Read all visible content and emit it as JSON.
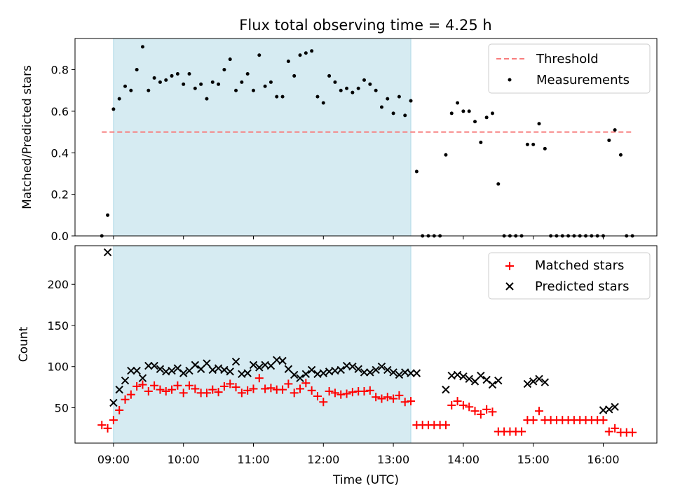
{
  "chart_data": [
    {
      "type": "scatter",
      "title": "Flux total observing time = 4.25 h",
      "ylabel": "Matched/Predicted stars",
      "xlabel": "",
      "ylim": [
        0,
        0.95
      ],
      "xlim": [
        "08:27",
        "16:46"
      ],
      "yticks": [
        "0.0",
        "0.2",
        "0.4",
        "0.6",
        "0.8"
      ],
      "shaded_interval": [
        "09:00",
        "13:15"
      ],
      "threshold": {
        "name": "Threshold",
        "value": 0.5,
        "x_range": [
          "08:50",
          "16:25"
        ],
        "color": "#f87c7c"
      },
      "legend_position": "top-right",
      "grid": false,
      "series": [
        {
          "name": "Measurements",
          "color": "#000000",
          "x": [
            "08:50",
            "08:55",
            "09:00",
            "09:05",
            "09:10",
            "09:15",
            "09:20",
            "09:25",
            "09:30",
            "09:35",
            "09:40",
            "09:45",
            "09:50",
            "09:55",
            "10:00",
            "10:05",
            "10:10",
            "10:15",
            "10:20",
            "10:25",
            "10:30",
            "10:35",
            "10:40",
            "10:45",
            "10:50",
            "10:55",
            "11:00",
            "11:05",
            "11:10",
            "11:15",
            "11:20",
            "11:25",
            "11:30",
            "11:35",
            "11:40",
            "11:45",
            "11:50",
            "11:55",
            "12:00",
            "12:05",
            "12:10",
            "12:15",
            "12:20",
            "12:25",
            "12:30",
            "12:35",
            "12:40",
            "12:45",
            "12:50",
            "12:55",
            "13:00",
            "13:05",
            "13:10",
            "13:15",
            "13:20",
            "13:25",
            "13:30",
            "13:35",
            "13:40",
            "13:45",
            "13:50",
            "13:55",
            "14:00",
            "14:05",
            "14:10",
            "14:15",
            "14:20",
            "14:25",
            "14:30",
            "14:35",
            "14:40",
            "14:45",
            "14:50",
            "14:55",
            "15:00",
            "15:05",
            "15:10",
            "15:15",
            "15:20",
            "15:25",
            "15:30",
            "15:35",
            "15:40",
            "15:45",
            "15:50",
            "15:55",
            "16:00",
            "16:05",
            "16:10",
            "16:15",
            "16:20",
            "16:25"
          ],
          "y": [
            0.0,
            0.1,
            0.61,
            0.66,
            0.72,
            0.7,
            0.8,
            0.91,
            0.7,
            0.76,
            0.74,
            0.75,
            0.77,
            0.78,
            0.73,
            0.78,
            0.71,
            0.73,
            0.66,
            0.74,
            0.73,
            0.8,
            0.85,
            0.7,
            0.74,
            0.78,
            0.7,
            0.87,
            0.72,
            0.74,
            0.67,
            0.67,
            0.84,
            0.77,
            0.87,
            0.88,
            0.89,
            0.67,
            0.64,
            0.77,
            0.74,
            0.7,
            0.71,
            0.69,
            0.71,
            0.75,
            0.73,
            0.7,
            0.62,
            0.66,
            0.59,
            0.67,
            0.58,
            0.65,
            0.31,
            0.0,
            0.0,
            0.0,
            0.0,
            0.39,
            0.59,
            0.64,
            0.6,
            0.6,
            0.55,
            0.45,
            0.57,
            0.59,
            0.25,
            0.0,
            0.0,
            0.0,
            0.0,
            0.44,
            0.44,
            0.54,
            0.42,
            0.0,
            0.0,
            0.0,
            0.0,
            0.0,
            0.0,
            0.0,
            0.0,
            0.0,
            0.0,
            0.46,
            0.51,
            0.39,
            0.0,
            0.0
          ]
        }
      ]
    },
    {
      "type": "scatter",
      "title": "",
      "ylabel": "Count",
      "xlabel": "Time (UTC)",
      "ylim": [
        7,
        247
      ],
      "xlim": [
        "08:27",
        "16:46"
      ],
      "yticks": [
        "50",
        "100",
        "150",
        "200"
      ],
      "xticks": [
        "09:00",
        "10:00",
        "11:00",
        "12:00",
        "13:00",
        "14:00",
        "15:00",
        "16:00"
      ],
      "shaded_interval": [
        "09:00",
        "13:15"
      ],
      "legend_position": "top-right",
      "grid": false,
      "series": [
        {
          "name": "Matched stars",
          "marker": "plus",
          "color": "#ff0000",
          "x": [
            "08:50",
            "08:55",
            "09:00",
            "09:05",
            "09:10",
            "09:15",
            "09:20",
            "09:25",
            "09:30",
            "09:35",
            "09:40",
            "09:45",
            "09:50",
            "09:55",
            "10:00",
            "10:05",
            "10:10",
            "10:15",
            "10:20",
            "10:25",
            "10:30",
            "10:35",
            "10:40",
            "10:45",
            "10:50",
            "10:55",
            "11:00",
            "11:05",
            "11:10",
            "11:15",
            "11:20",
            "11:25",
            "11:30",
            "11:35",
            "11:40",
            "11:45",
            "11:50",
            "11:55",
            "12:00",
            "12:05",
            "12:10",
            "12:15",
            "12:20",
            "12:25",
            "12:30",
            "12:35",
            "12:40",
            "12:45",
            "12:50",
            "12:55",
            "13:00",
            "13:05",
            "13:10",
            "13:15",
            "13:20",
            "13:25",
            "13:30",
            "13:35",
            "13:40",
            "13:45",
            "13:50",
            "13:55",
            "14:00",
            "14:05",
            "14:10",
            "14:15",
            "14:20",
            "14:25",
            "14:30",
            "14:35",
            "14:40",
            "14:45",
            "14:50",
            "14:55",
            "15:00",
            "15:05",
            "15:10",
            "15:15",
            "15:20",
            "15:25",
            "15:30",
            "15:35",
            "15:40",
            "15:45",
            "15:50",
            "15:55",
            "16:00",
            "16:05",
            "16:10",
            "16:15",
            "16:20",
            "16:25"
          ],
          "y": [
            29,
            25,
            35,
            47,
            60,
            66,
            76,
            78,
            70,
            77,
            72,
            70,
            72,
            77,
            68,
            77,
            73,
            68,
            68,
            72,
            69,
            76,
            79,
            75,
            68,
            71,
            73,
            86,
            73,
            74,
            72,
            72,
            79,
            68,
            73,
            80,
            71,
            64,
            57,
            70,
            68,
            66,
            67,
            69,
            70,
            70,
            71,
            63,
            61,
            63,
            61,
            65,
            57,
            58,
            29,
            29,
            29,
            29,
            29,
            29,
            53,
            58,
            53,
            51,
            46,
            42,
            48,
            45,
            21,
            21,
            21,
            21,
            21,
            35,
            35,
            46,
            35,
            35,
            35,
            35,
            35,
            35,
            35,
            35,
            35,
            35,
            35,
            21,
            25,
            20,
            20,
            20
          ]
        },
        {
          "name": "Predicted stars",
          "marker": "x",
          "color": "#000000",
          "x": [
            "08:55",
            "09:00",
            "09:05",
            "09:10",
            "09:15",
            "09:20",
            "09:25",
            "09:30",
            "09:35",
            "09:40",
            "09:45",
            "09:50",
            "09:55",
            "10:00",
            "10:05",
            "10:10",
            "10:15",
            "10:20",
            "10:25",
            "10:30",
            "10:35",
            "10:40",
            "10:45",
            "10:50",
            "10:55",
            "11:00",
            "11:05",
            "11:10",
            "11:15",
            "11:20",
            "11:25",
            "11:30",
            "11:35",
            "11:40",
            "11:45",
            "11:50",
            "11:55",
            "12:00",
            "12:05",
            "12:10",
            "12:15",
            "12:20",
            "12:25",
            "12:30",
            "12:35",
            "12:40",
            "12:45",
            "12:50",
            "12:55",
            "13:00",
            "13:05",
            "13:10",
            "13:15",
            "13:20",
            "13:45",
            "13:50",
            "13:55",
            "14:00",
            "14:05",
            "14:10",
            "14:15",
            "14:20",
            "14:25",
            "14:30",
            "14:55",
            "15:00",
            "15:05",
            "15:10",
            "16:00",
            "16:05",
            "16:10"
          ],
          "y": [
            239,
            56,
            72,
            83,
            95,
            95,
            86,
            101,
            101,
            97,
            94,
            95,
            98,
            92,
            95,
            102,
            97,
            104,
            96,
            98,
            96,
            94,
            106,
            91,
            92,
            102,
            99,
            102,
            101,
            108,
            107,
            97,
            90,
            86,
            91,
            96,
            91,
            92,
            94,
            95,
            96,
            101,
            100,
            97,
            93,
            93,
            96,
            100,
            96,
            93,
            90,
            93,
            92,
            92,
            72,
            89,
            90,
            88,
            85,
            82,
            89,
            84,
            78,
            83,
            79,
            82,
            85,
            81,
            47,
            48,
            51
          ]
        }
      ]
    }
  ]
}
